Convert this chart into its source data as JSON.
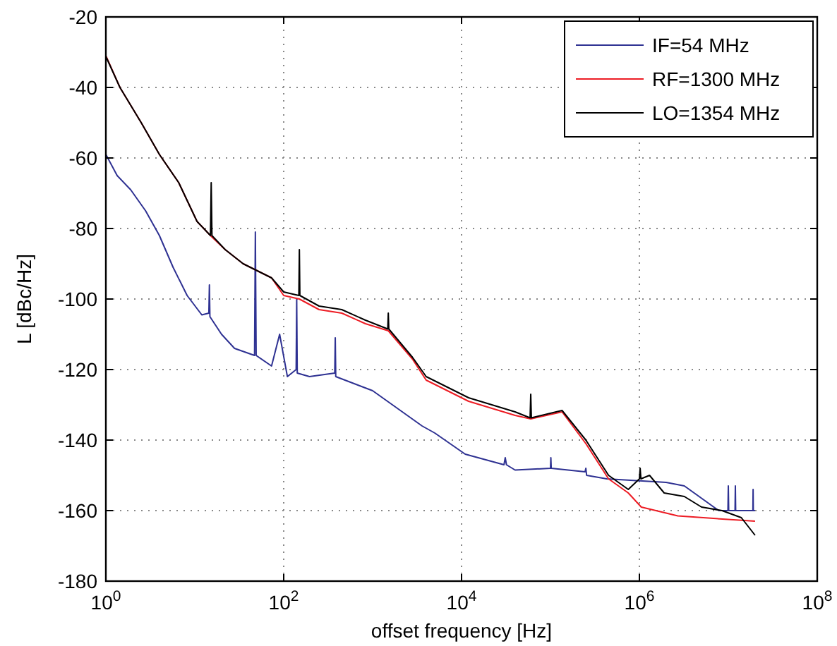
{
  "chart_data": {
    "type": "line",
    "xlabel": "offset frequency [Hz]",
    "ylabel": "L [dBc/Hz]",
    "log": "x",
    "grid": true,
    "legend": "top right",
    "line_style": "solid",
    "xlim": [
      1,
      100000000
    ],
    "ylim": [
      -180,
      -20
    ],
    "xticks": [
      {
        "value": 1,
        "label": "10$^{0}$"
      },
      {
        "value": 100,
        "label": "10$^{2}$"
      },
      {
        "value": 10000,
        "label": "10$^{4}$"
      },
      {
        "value": 1000000,
        "label": "10$^{6}$"
      },
      {
        "value": 100000000,
        "label": "10$^{8}$"
      }
    ],
    "yticks": [
      -180,
      -160,
      -140,
      -120,
      -100,
      -80,
      -60,
      -40,
      -20
    ],
    "series": [
      {
        "name": "IF=54 MHz",
        "color": "#2e3192",
        "x": [
          1,
          1.34,
          1.9,
          2.8,
          4,
          5.7,
          8.2,
          12,
          14.4,
          14.6,
          14.8,
          20,
          28,
          47,
          48,
          49,
          73,
          90,
          110,
          138,
          140,
          142,
          195,
          375,
          380,
          385,
          1000,
          3600,
          5000,
          11000,
          30000,
          31000,
          32000,
          40000,
          100000,
          101000,
          102000,
          245000,
          250000,
          255000,
          430000,
          2000000,
          3200000,
          7800000,
          9900000,
          10000000,
          10100000,
          11900000,
          12000000,
          12100000,
          18900000,
          19000000,
          19100000,
          20000000
        ],
        "values": [
          -59,
          -65,
          -69,
          -75,
          -82,
          -91,
          -99,
          -104.5,
          -104,
          -96,
          -105,
          -110,
          -114,
          -116,
          -81,
          -116,
          -119,
          -110,
          -122,
          -120,
          -100,
          -121,
          -122,
          -121,
          -111,
          -122,
          -126,
          -136,
          -138,
          -144,
          -147,
          -145,
          -147,
          -148.5,
          -148,
          -145,
          -148,
          -149,
          -148,
          -150,
          -151,
          -152,
          -153,
          -160,
          -160,
          -153,
          -160,
          -160,
          -153,
          -160,
          -160,
          -154,
          -160,
          -160
        ]
      },
      {
        "name": "RF=1300 MHz",
        "color": "#ed1c24",
        "x": [
          1,
          1.44,
          2.5,
          4,
          6.6,
          10.6,
          15,
          22,
          35,
          73,
          100,
          150,
          250,
          450,
          830,
          1500,
          2800,
          4000,
          12000,
          40000,
          60000,
          135000,
          250000,
          450000,
          750000,
          1050000,
          2700000,
          9900000,
          20000000
        ],
        "values": [
          -31,
          -40,
          -50,
          -59,
          -67,
          -78,
          -82,
          -86,
          -90,
          -94,
          -99,
          -100,
          -103,
          -104,
          -107,
          -109,
          -117,
          -123,
          -129,
          -133,
          -134,
          -132,
          -141,
          -151,
          -155,
          -159,
          -161.5,
          -162.5,
          -163
        ]
      },
      {
        "name": "LO=1354 MHz",
        "color": "#000000",
        "x": [
          1,
          1.44,
          2.5,
          4,
          6.6,
          10.6,
          15,
          15.3,
          15.6,
          22,
          35,
          73,
          100,
          148,
          150,
          152,
          250,
          450,
          830,
          1480,
          1500,
          1520,
          2800,
          4000,
          12000,
          40000,
          59000,
          60000,
          61000,
          135000,
          250000,
          450000,
          750000,
          1000000,
          1020000,
          1040000,
          1300000,
          1900000,
          3200000,
          5000000,
          8500000,
          14000000,
          20000000
        ],
        "values": [
          -31.2,
          -40,
          -50,
          -59,
          -67,
          -78,
          -82,
          -67,
          -82,
          -86,
          -90,
          -94,
          -98,
          -99,
          -86,
          -99,
          -102,
          -103,
          -106,
          -108.5,
          -104,
          -108.5,
          -116.5,
          -122,
          -128,
          -132,
          -133.7,
          -127,
          -133.7,
          -131.6,
          -140,
          -150,
          -154,
          -151,
          -148,
          -151,
          -150,
          -155,
          -156,
          -159,
          -160,
          -162,
          -167
        ]
      }
    ]
  }
}
